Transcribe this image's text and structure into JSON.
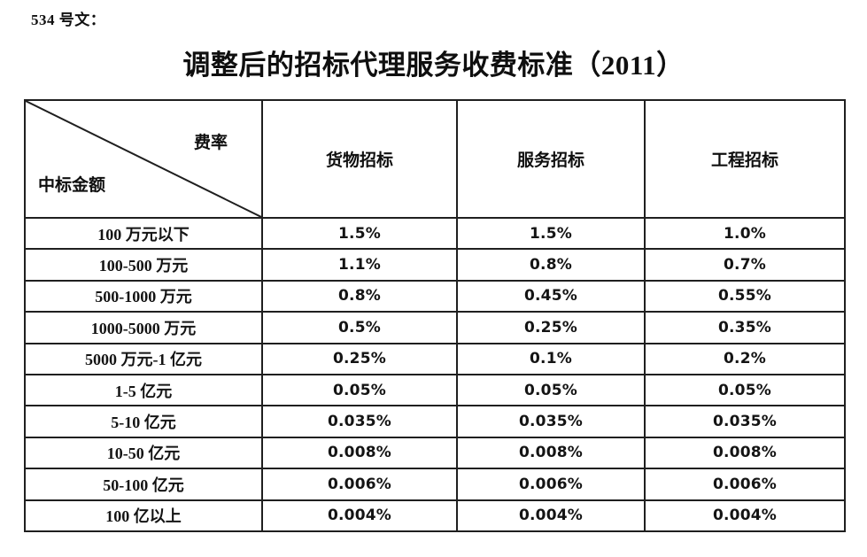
{
  "doc_label": "534 号文：",
  "title": "调整后的招标代理服务收费标准（2011）",
  "table": {
    "corner": {
      "top_right": "费率",
      "bottom_left": "中标金额"
    },
    "columns": [
      "货物招标",
      "服务招标",
      "工程招标"
    ],
    "rows": [
      {
        "label": "100 万元以下",
        "values": [
          "1.5%",
          "1.5%",
          "1.0%"
        ]
      },
      {
        "label": "100-500 万元",
        "values": [
          "1.1%",
          "0.8%",
          "0.7%"
        ]
      },
      {
        "label": "500-1000 万元",
        "values": [
          "0.8%",
          "0.45%",
          "0.55%"
        ]
      },
      {
        "label": "1000-5000 万元",
        "values": [
          "0.5%",
          "0.25%",
          "0.35%"
        ]
      },
      {
        "label": "5000 万元-1 亿元",
        "values": [
          "0.25%",
          "0.1%",
          "0.2%"
        ]
      },
      {
        "label": "1-5 亿元",
        "values": [
          "0.05%",
          "0.05%",
          "0.05%"
        ]
      },
      {
        "label": "5-10 亿元",
        "values": [
          "0.035%",
          "0.035%",
          "0.035%"
        ]
      },
      {
        "label": "10-50 亿元",
        "values": [
          "0.008%",
          "0.008%",
          "0.008%"
        ]
      },
      {
        "label": "50-100 亿元",
        "values": [
          "0.006%",
          "0.006%",
          "0.006%"
        ]
      },
      {
        "label": "100 亿以上",
        "values": [
          "0.004%",
          "0.004%",
          "0.004%"
        ]
      }
    ],
    "colors": {
      "border": "#1f1f1f",
      "text": "#111111",
      "background": "#ffffff"
    }
  }
}
